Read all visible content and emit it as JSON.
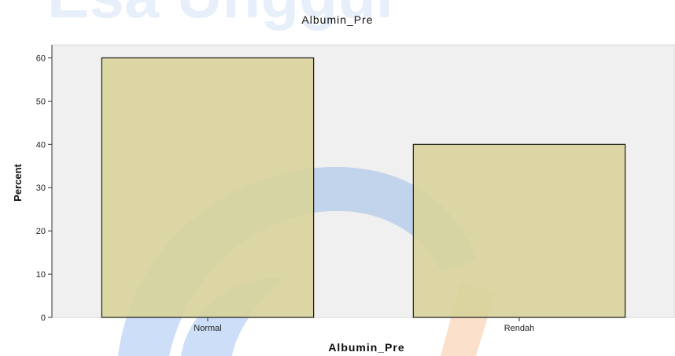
{
  "watermark": {
    "text": "Esa Unggul",
    "color_blue": "#1e6fe0",
    "color_orange": "#f07a18"
  },
  "chart_data": {
    "type": "bar",
    "title": "Albumin_Pre",
    "xlabel": "Albumin_Pre",
    "ylabel": "Percent",
    "categories": [
      "Normal",
      "Rendah"
    ],
    "values": [
      60,
      40
    ],
    "ylim": [
      0,
      63
    ],
    "yticks": [
      0,
      10,
      20,
      30,
      40,
      50,
      60
    ],
    "grid": false,
    "bar_color": "#d9d49c",
    "bar_border_color": "#1a1a1a",
    "plot_background": "#f0f0f0"
  }
}
